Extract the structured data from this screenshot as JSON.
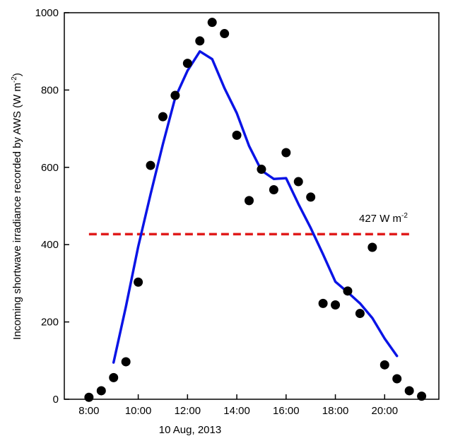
{
  "chart_data": {
    "type": "scatter",
    "title": "",
    "xlabel": "10 Aug, 2013",
    "ylabel_main": "Incoming shortwave irradiance recorded by AWS (W m",
    "ylabel_sup": "-2",
    "ylabel_end": ")",
    "x_unit": "hour of day",
    "xlim": [
      7.0,
      22.2
    ],
    "ylim": [
      0,
      1000
    ],
    "x_ticks": [
      {
        "value": 8,
        "label": "8:00"
      },
      {
        "value": 10,
        "label": "10:00"
      },
      {
        "value": 12,
        "label": "12:00"
      },
      {
        "value": 14,
        "label": "14:00"
      },
      {
        "value": 16,
        "label": "16:00"
      },
      {
        "value": 18,
        "label": "18:00"
      },
      {
        "value": 20,
        "label": "20:00"
      }
    ],
    "y_ticks": [
      {
        "value": 0,
        "label": "0"
      },
      {
        "value": 200,
        "label": "200"
      },
      {
        "value": 400,
        "label": "400"
      },
      {
        "value": 600,
        "label": "600"
      },
      {
        "value": 800,
        "label": "800"
      },
      {
        "value": 1000,
        "label": "1000"
      }
    ],
    "grid": false,
    "legend": "none",
    "colors": {
      "points": "#000000",
      "line": "#0a14e6",
      "reference": "#e01b1b"
    },
    "points": {
      "x": [
        8.0,
        8.5,
        9.0,
        9.5,
        10.0,
        10.5,
        11.0,
        11.5,
        12.0,
        12.5,
        13.0,
        13.5,
        14.0,
        14.5,
        15.0,
        15.5,
        16.0,
        16.5,
        17.0,
        17.5,
        18.0,
        18.5,
        19.0,
        19.5,
        20.0,
        20.5,
        21.0,
        21.5
      ],
      "y": [
        5,
        22,
        56,
        97,
        303,
        605,
        731,
        786,
        869,
        927,
        975,
        946,
        683,
        514,
        595,
        542,
        638,
        563,
        523,
        248,
        244,
        280,
        222,
        393,
        89,
        53,
        22,
        8
      ]
    },
    "line": {
      "x": [
        9.0,
        9.5,
        10.0,
        10.5,
        11.0,
        11.5,
        12.0,
        12.5,
        13.0,
        13.5,
        14.0,
        14.5,
        15.0,
        15.5,
        16.0,
        16.5,
        17.0,
        17.5,
        18.0,
        18.5,
        19.0,
        19.5,
        20.0,
        20.5
      ],
      "y": [
        95,
        240,
        395,
        530,
        660,
        780,
        850,
        900,
        880,
        805,
        740,
        655,
        592,
        570,
        572,
        505,
        443,
        375,
        304,
        277,
        248,
        210,
        157,
        112
      ]
    },
    "reference_line": {
      "y": 427,
      "x_start": 8.0,
      "x_end": 21.0
    },
    "annotation": {
      "text": "427 W m",
      "sup": "-2",
      "x": 19.6,
      "y": 452
    }
  }
}
